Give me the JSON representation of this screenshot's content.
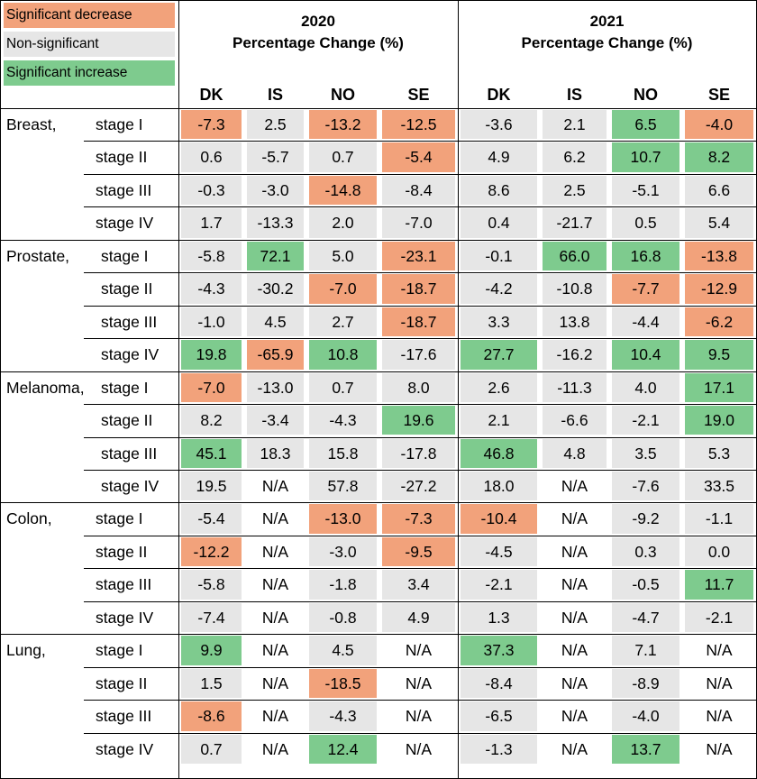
{
  "colors": {
    "decrease": "#F2A27B",
    "nonsig": "#E6E6E6",
    "increase": "#7ECB8E",
    "neutral": "#FFFFFF"
  },
  "legend": [
    {
      "label": "Significant decrease",
      "status": "decrease"
    },
    {
      "label": "Non-significant",
      "status": "nonsig"
    },
    {
      "label": "Significant increase",
      "status": "increase"
    }
  ],
  "years": [
    {
      "year": "2020",
      "subtitle": "Percentage Change (%)"
    },
    {
      "year": "2021",
      "subtitle": "Percentage Change (%)"
    }
  ],
  "countries": [
    "DK",
    "IS",
    "NO",
    "SE"
  ],
  "chart_data": {
    "type": "table",
    "columns": [
      "2020 DK",
      "2020 IS",
      "2020 NO",
      "2020 SE",
      "2021 DK",
      "2021 IS",
      "2021 NO",
      "2021 SE"
    ],
    "rows": [
      {
        "category": "Breast,",
        "stage": "stage I",
        "values": [
          "-7.3",
          "2.5",
          "-13.2",
          "-12.5",
          "-3.6",
          "2.1",
          "6.5",
          "-4.0"
        ],
        "status": [
          "decrease",
          "nonsig",
          "decrease",
          "decrease",
          "nonsig",
          "nonsig",
          "increase",
          "decrease"
        ]
      },
      {
        "category": "",
        "stage": "stage II",
        "values": [
          "0.6",
          "-5.7",
          "0.7",
          "-5.4",
          "4.9",
          "6.2",
          "10.7",
          "8.2"
        ],
        "status": [
          "nonsig",
          "nonsig",
          "nonsig",
          "decrease",
          "nonsig",
          "nonsig",
          "increase",
          "increase"
        ]
      },
      {
        "category": "",
        "stage": "stage III",
        "values": [
          "-0.3",
          "-3.0",
          "-14.8",
          "-8.4",
          "8.6",
          "2.5",
          "-5.1",
          "6.6"
        ],
        "status": [
          "nonsig",
          "nonsig",
          "decrease",
          "nonsig",
          "nonsig",
          "nonsig",
          "nonsig",
          "nonsig"
        ]
      },
      {
        "category": "",
        "stage": "stage IV",
        "values": [
          "1.7",
          "-13.3",
          "2.0",
          "-7.0",
          "0.4",
          "-21.7",
          "0.5",
          "5.4"
        ],
        "status": [
          "nonsig",
          "nonsig",
          "nonsig",
          "nonsig",
          "nonsig",
          "nonsig",
          "nonsig",
          "nonsig"
        ]
      },
      {
        "category": "Prostate,",
        "stage": "stage I",
        "values": [
          "-5.8",
          "72.1",
          "5.0",
          "-23.1",
          "-0.1",
          "66.0",
          "16.8",
          "-13.8"
        ],
        "status": [
          "nonsig",
          "increase",
          "nonsig",
          "decrease",
          "nonsig",
          "increase",
          "increase",
          "decrease"
        ]
      },
      {
        "category": "",
        "stage": "stage II",
        "values": [
          "-4.3",
          "-30.2",
          "-7.0",
          "-18.7",
          "-4.2",
          "-10.8",
          "-7.7",
          "-12.9"
        ],
        "status": [
          "nonsig",
          "nonsig",
          "decrease",
          "decrease",
          "nonsig",
          "nonsig",
          "decrease",
          "decrease"
        ]
      },
      {
        "category": "",
        "stage": "stage III",
        "values": [
          "-1.0",
          "4.5",
          "2.7",
          "-18.7",
          "3.3",
          "13.8",
          "-4.4",
          "-6.2"
        ],
        "status": [
          "nonsig",
          "nonsig",
          "nonsig",
          "decrease",
          "nonsig",
          "nonsig",
          "nonsig",
          "decrease"
        ]
      },
      {
        "category": "",
        "stage": "stage IV",
        "values": [
          "19.8",
          "-65.9",
          "10.8",
          "-17.6",
          "27.7",
          "-16.2",
          "10.4",
          "9.5"
        ],
        "status": [
          "increase",
          "decrease",
          "increase",
          "nonsig",
          "increase",
          "nonsig",
          "increase",
          "increase"
        ]
      },
      {
        "category": "Melanoma,",
        "stage": "stage I",
        "values": [
          "-7.0",
          "-13.0",
          "0.7",
          "8.0",
          "2.6",
          "-11.3",
          "4.0",
          "17.1"
        ],
        "status": [
          "decrease",
          "nonsig",
          "nonsig",
          "nonsig",
          "nonsig",
          "nonsig",
          "nonsig",
          "increase"
        ]
      },
      {
        "category": "",
        "stage": "stage II",
        "values": [
          "8.2",
          "-3.4",
          "-4.3",
          "19.6",
          "2.1",
          "-6.6",
          "-2.1",
          "19.0"
        ],
        "status": [
          "nonsig",
          "nonsig",
          "nonsig",
          "increase",
          "nonsig",
          "nonsig",
          "nonsig",
          "increase"
        ]
      },
      {
        "category": "",
        "stage": "stage III",
        "values": [
          "45.1",
          "18.3",
          "15.8",
          "-17.8",
          "46.8",
          "4.8",
          "3.5",
          "5.3"
        ],
        "status": [
          "increase",
          "nonsig",
          "nonsig",
          "nonsig",
          "increase",
          "nonsig",
          "nonsig",
          "nonsig"
        ]
      },
      {
        "category": "",
        "stage": "stage IV",
        "values": [
          "19.5",
          "N/A",
          "57.8",
          "-27.2",
          "18.0",
          "N/A",
          "-7.6",
          "33.5"
        ],
        "status": [
          "nonsig",
          "neutral",
          "nonsig",
          "nonsig",
          "nonsig",
          "neutral",
          "nonsig",
          "nonsig"
        ]
      },
      {
        "category": "Colon,",
        "stage": "stage I",
        "values": [
          "-5.4",
          "N/A",
          "-13.0",
          "-7.3",
          "-10.4",
          "N/A",
          "-9.2",
          "-1.1"
        ],
        "status": [
          "nonsig",
          "neutral",
          "decrease",
          "decrease",
          "decrease",
          "neutral",
          "nonsig",
          "nonsig"
        ]
      },
      {
        "category": "",
        "stage": "stage II",
        "values": [
          "-12.2",
          "N/A",
          "-3.0",
          "-9.5",
          "-4.5",
          "N/A",
          "0.3",
          "0.0"
        ],
        "status": [
          "decrease",
          "neutral",
          "nonsig",
          "decrease",
          "nonsig",
          "neutral",
          "nonsig",
          "nonsig"
        ]
      },
      {
        "category": "",
        "stage": "stage III",
        "values": [
          "-5.8",
          "N/A",
          "-1.8",
          "3.4",
          "-2.1",
          "N/A",
          "-0.5",
          "11.7"
        ],
        "status": [
          "nonsig",
          "neutral",
          "nonsig",
          "nonsig",
          "nonsig",
          "neutral",
          "nonsig",
          "increase"
        ]
      },
      {
        "category": "",
        "stage": "stage IV",
        "values": [
          "-7.4",
          "N/A",
          "-0.8",
          "4.9",
          "1.3",
          "N/A",
          "-4.7",
          "-2.1"
        ],
        "status": [
          "nonsig",
          "neutral",
          "nonsig",
          "nonsig",
          "nonsig",
          "neutral",
          "nonsig",
          "nonsig"
        ]
      },
      {
        "category": "Lung,",
        "stage": "stage I",
        "values": [
          "9.9",
          "N/A",
          "4.5",
          "N/A",
          "37.3",
          "N/A",
          "7.1",
          "N/A"
        ],
        "status": [
          "increase",
          "neutral",
          "nonsig",
          "neutral",
          "increase",
          "neutral",
          "nonsig",
          "neutral"
        ]
      },
      {
        "category": "",
        "stage": "stage II",
        "values": [
          "1.5",
          "N/A",
          "-18.5",
          "N/A",
          "-8.4",
          "N/A",
          "-8.9",
          "N/A"
        ],
        "status": [
          "nonsig",
          "neutral",
          "decrease",
          "neutral",
          "nonsig",
          "neutral",
          "nonsig",
          "neutral"
        ]
      },
      {
        "category": "",
        "stage": "stage III",
        "values": [
          "-8.6",
          "N/A",
          "-4.3",
          "N/A",
          "-6.5",
          "N/A",
          "-4.0",
          "N/A"
        ],
        "status": [
          "decrease",
          "neutral",
          "nonsig",
          "neutral",
          "nonsig",
          "neutral",
          "nonsig",
          "neutral"
        ]
      },
      {
        "category": "",
        "stage": "stage IV",
        "values": [
          "0.7",
          "N/A",
          "12.4",
          "N/A",
          "-1.3",
          "N/A",
          "13.7",
          "N/A"
        ],
        "status": [
          "nonsig",
          "neutral",
          "increase",
          "neutral",
          "nonsig",
          "neutral",
          "increase",
          "neutral"
        ]
      }
    ]
  }
}
